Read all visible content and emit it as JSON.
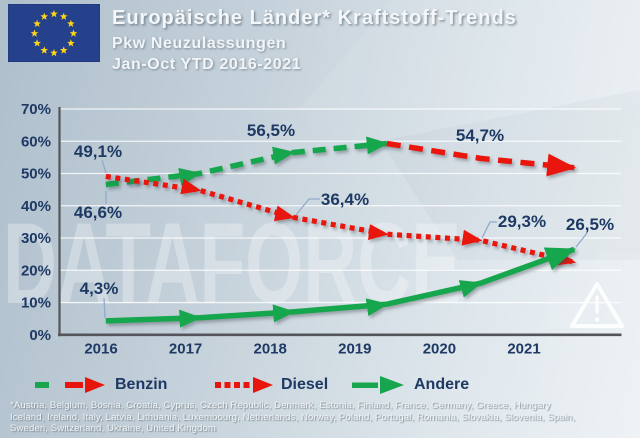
{
  "colors": {
    "green": "#17a64d",
    "red": "#e8150c",
    "navy": "#1e3a64",
    "flag_blue": "#26418c",
    "star_yellow": "#ffd617",
    "gridline": "rgba(255,255,255,0.8)",
    "axis": "#53555b",
    "callout_connector": "#93a9cd",
    "watermark_color": "rgba(255,255,255,0.30)"
  },
  "header": {
    "title": "Europäische Länder* Kraftstoff-Trends",
    "subtitle1": "Pkw Neuzulassungen",
    "subtitle2": "Jan-Oct YTD 2016-2021"
  },
  "watermark": {
    "text": "DATAFORCE"
  },
  "chart_data": {
    "type": "line",
    "title": "Europäische Länder Kraftstoff-Trends, Pkw Neuzulassungen Jan-Oct YTD 2016-2021",
    "categories": [
      "2016",
      "2017",
      "2018",
      "2019",
      "2020",
      "2021"
    ],
    "xlabel": "",
    "ylabel": "",
    "ylim": [
      0,
      70
    ],
    "ytick_step": 10,
    "ytick_labels": [
      "0%",
      "10%",
      "20%",
      "30%",
      "40%",
      "50%",
      "60%",
      "70%"
    ],
    "grid": true,
    "legend_position": "bottom",
    "series": [
      {
        "name": "Benzin",
        "line_style": "dashed",
        "marker": "arrow",
        "color_phase1": "#17a64d",
        "color_phase2": "#e8150c",
        "color_switch_year": "2019",
        "values": [
          46.6,
          50.0,
          56.5,
          59.3,
          54.7,
          51.8
        ],
        "point_labels": {
          "2016": "46,6%",
          "2018": "56,5%",
          "2020": "54,7%"
        }
      },
      {
        "name": "Diesel",
        "line_style": "dotted",
        "marker": "arrow",
        "color": "#e8150c",
        "values": [
          49.1,
          44.8,
          36.4,
          31.2,
          29.3,
          22.5
        ],
        "point_labels": {
          "2016": "49,1%",
          "2018": "36,4%",
          "2020": "29,3%"
        }
      },
      {
        "name": "Andere",
        "line_style": "solid",
        "marker": "arrow",
        "color": "#17a64d",
        "values": [
          4.3,
          5.3,
          7.1,
          9.5,
          16.0,
          26.5
        ],
        "point_labels": {
          "2016": "4,3%",
          "2021": "26,5%"
        }
      }
    ]
  },
  "legend": {
    "items": [
      {
        "label": "Benzin",
        "swatch": "green-dash-red-dash-arrow-icon"
      },
      {
        "label": "Diesel",
        "swatch": "red-dotted-arrow-icon"
      },
      {
        "label": "Andere",
        "swatch": "green-solid-arrow-icon"
      }
    ]
  },
  "warning": {
    "icon": "warning-triangle-icon"
  },
  "footnote": {
    "line1": "*Austria, Belgium, Bosnia, Croatia, Cyprus, Czech Republic, Denmark, Estonia,  Finland, France, Germany, Greece, Hungary",
    "line2": "Iceland, Ireland, Italy, Latvia, Lithuania, Luxembourg, Netherlands, Norway, Poland, Portugal, Romania, Slovakia, Slovenia, Spain,",
    "line3": "Sweden, Switzerland, Ukraine, United Kingdom"
  }
}
